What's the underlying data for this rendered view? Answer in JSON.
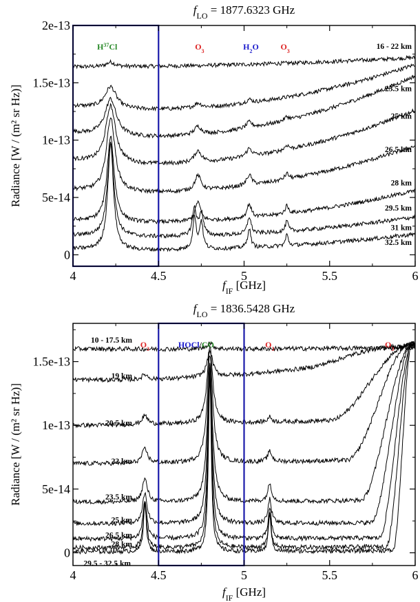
{
  "chart_data": [
    {
      "type": "line",
      "title_prefix": "f",
      "title_sub": "LO",
      "title_value": " = 1877.6323 GHz",
      "xlabel_prefix": "f",
      "xlabel_sub": "IF",
      "xlabel_unit": " [GHz]",
      "ylabel": "Radiance [W / (m² sr Hz)]",
      "xlim": [
        4,
        6
      ],
      "ylim": [
        -1e-14,
        2e-13
      ],
      "x_ticks": [
        4,
        4.5,
        5,
        5.5,
        6
      ],
      "x_tick_labels": [
        "4",
        "4.5",
        "5",
        "5.5",
        "6"
      ],
      "y_ticks": [
        0,
        5e-14,
        1e-13,
        1.5e-13,
        2e-13
      ],
      "y_tick_labels": [
        "0",
        "5e-14",
        "1e-13",
        "1.5e-13",
        "2e-13"
      ],
      "highlight_band": [
        4,
        4.5
      ],
      "band_color": "#1a1aaa",
      "species_labels": [
        {
          "base": "H",
          "sup": "37",
          "rest": "Cl",
          "x": 4.2,
          "color": "#2a8a2a"
        },
        {
          "base": "O",
          "sub": "3",
          "x": 4.74,
          "color": "#dd2222"
        },
        {
          "base": "H",
          "sub": "2",
          "rest": "O",
          "x": 5.04,
          "color": "#1a1acc"
        },
        {
          "base": "O",
          "sub": "3",
          "x": 5.24,
          "color": "#dd2222"
        }
      ],
      "series": [
        {
          "name": "16 - 22 km",
          "baseline": [
            1.64e-13,
            1.66e-13,
            1.72e-13
          ],
          "lines": [
            {
              "center": 4.22,
              "width": 0.03,
              "height": 4e-15
            }
          ]
        },
        {
          "name": "23.5 km",
          "baseline": [
            1.3e-13,
            1.32e-13,
            1.66e-13
          ],
          "lines": [
            {
              "center": 4.22,
              "width": 0.04,
              "height": 1.9e-14
            },
            {
              "center": 4.73,
              "width": 0.025,
              "height": 4e-15
            },
            {
              "center": 5.03,
              "width": 0.02,
              "height": 3e-15
            }
          ]
        },
        {
          "name": "25 km",
          "baseline": [
            1.07e-13,
            1.1e-13,
            1.56e-13
          ],
          "lines": [
            {
              "center": 4.22,
              "width": 0.04,
              "height": 3.2e-14
            },
            {
              "center": 4.73,
              "width": 0.025,
              "height": 7e-15
            },
            {
              "center": 5.03,
              "width": 0.02,
              "height": 5e-15
            },
            {
              "center": 5.25,
              "width": 0.015,
              "height": 3e-15
            }
          ]
        },
        {
          "name": "26.5 km",
          "baseline": [
            8.3e-14,
            8.5e-14,
            1.26e-13
          ],
          "lines": [
            {
              "center": 4.22,
              "width": 0.035,
              "height": 5e-14
            },
            {
              "center": 4.73,
              "width": 0.025,
              "height": 1e-14
            },
            {
              "center": 5.03,
              "width": 0.02,
              "height": 7e-15
            },
            {
              "center": 5.25,
              "width": 0.015,
              "height": 4e-15
            }
          ]
        },
        {
          "name": "28 km",
          "baseline": [
            5.7e-14,
            6e-14,
            9.5e-14
          ],
          "lines": [
            {
              "center": 4.22,
              "width": 0.03,
              "height": 6.5e-14
            },
            {
              "center": 4.73,
              "width": 0.022,
              "height": 1.3e-14
            },
            {
              "center": 5.03,
              "width": 0.018,
              "height": 9e-15
            },
            {
              "center": 5.25,
              "width": 0.015,
              "height": 5e-15
            }
          ]
        },
        {
          "name": "29.5 km",
          "baseline": [
            3e-14,
            3.2e-14,
            5.6e-14
          ],
          "lines": [
            {
              "center": 4.22,
              "width": 0.025,
              "height": 7.5e-14
            },
            {
              "center": 4.73,
              "width": 0.018,
              "height": 1.7e-14
            },
            {
              "center": 5.03,
              "width": 0.015,
              "height": 1.2e-14
            },
            {
              "center": 5.25,
              "width": 0.012,
              "height": 7e-15
            }
          ]
        },
        {
          "name": "31 km",
          "baseline": [
            1.7e-14,
            1.8e-14,
            3.3e-14
          ],
          "lines": [
            {
              "center": 4.22,
              "width": 0.022,
              "height": 8.3e-14
            },
            {
              "center": 4.71,
              "width": 0.014,
              "height": 2.4e-14
            },
            {
              "center": 4.75,
              "width": 0.014,
              "height": 2e-14
            },
            {
              "center": 5.03,
              "width": 0.013,
              "height": 1.5e-14
            },
            {
              "center": 5.25,
              "width": 0.01,
              "height": 9e-15
            }
          ]
        },
        {
          "name": "32.5 km",
          "baseline": [
            5e-15,
            6e-15,
            1.8e-14
          ],
          "lines": [
            {
              "center": 4.22,
              "width": 0.02,
              "height": 9.3e-14
            },
            {
              "center": 4.71,
              "width": 0.012,
              "height": 2.8e-14
            },
            {
              "center": 4.75,
              "width": 0.012,
              "height": 2.4e-14
            },
            {
              "center": 5.03,
              "width": 0.011,
              "height": 1.7e-14
            },
            {
              "center": 5.25,
              "width": 0.009,
              "height": 1e-14
            }
          ]
        }
      ]
    },
    {
      "type": "line",
      "title_prefix": "f",
      "title_sub": "LO",
      "title_value": " = 1836.5428 GHz",
      "xlabel_prefix": "f",
      "xlabel_sub": "IF",
      "xlabel_unit": " [GHz]",
      "ylabel": "Radiance [W / (m² sr Hz)]",
      "xlim": [
        4,
        6
      ],
      "ylim": [
        -1e-14,
        1.8e-13
      ],
      "x_ticks": [
        4,
        4.5,
        5,
        5.5,
        6
      ],
      "x_tick_labels": [
        "4",
        "4.5",
        "5",
        "5.5",
        "6"
      ],
      "y_ticks": [
        0,
        5e-14,
        1e-13,
        1.5e-13
      ],
      "y_tick_labels": [
        "0",
        "5e-14",
        "1e-13",
        "1.5e-13"
      ],
      "highlight_band": [
        4.5,
        5
      ],
      "band_color": "#1a1aaa",
      "species_labels": [
        {
          "base": "O",
          "sub": "3",
          "x": 4.42,
          "color": "#dd2222"
        },
        {
          "base": "HOCl",
          "color": "#1a1acc",
          "x": 4.72,
          "slash": "/",
          "second": "CO",
          "second_color": "#2a8a2a"
        },
        {
          "base": "O",
          "sub": "3",
          "x": 5.15,
          "color": "#dd2222"
        },
        {
          "base": "O",
          "sub": "3",
          "x": 5.85,
          "color": "#dd2222"
        }
      ],
      "series": [
        {
          "name": "10 - 17.5 km",
          "baseline": [
            1.6e-13,
            1.6e-13,
            1.61e-13
          ],
          "lines": [
            {
              "center": 4.8,
              "width": 0.02,
              "height": 5e-15
            }
          ]
        },
        {
          "name": "19 km",
          "baseline": [
            1.36e-13,
            1.4e-13,
            1.58e-13
          ],
          "lines": [
            {
              "center": 4.42,
              "width": 0.02,
              "height": 4e-15
            },
            {
              "center": 4.8,
              "width": 0.02,
              "height": 2e-14
            }
          ],
          "rise": {
            "start": 5.35,
            "end": 5.95,
            "to": 1.62e-13
          }
        },
        {
          "name": "20.5 km",
          "baseline": [
            1e-13,
            1.02e-13,
            1.06e-13
          ],
          "lines": [
            {
              "center": 4.42,
              "width": 0.02,
              "height": 7e-15
            },
            {
              "center": 4.8,
              "width": 0.02,
              "height": 6e-14
            },
            {
              "center": 5.15,
              "width": 0.015,
              "height": 4e-15
            }
          ],
          "rise": {
            "start": 5.5,
            "end": 5.97,
            "to": 1.63e-13
          }
        },
        {
          "name": "22 km",
          "baseline": [
            7e-14,
            7.1e-14,
            7.4e-14
          ],
          "lines": [
            {
              "center": 4.42,
              "width": 0.02,
              "height": 1.1e-14
            },
            {
              "center": 4.8,
              "width": 0.02,
              "height": 8.5e-14
            },
            {
              "center": 5.15,
              "width": 0.015,
              "height": 8e-15
            }
          ],
          "rise": {
            "start": 5.6,
            "end": 5.97,
            "to": 1.64e-13
          }
        },
        {
          "name": "23.5 km",
          "baseline": [
            4e-14,
            4e-14,
            4.2e-14
          ],
          "lines": [
            {
              "center": 4.42,
              "width": 0.018,
              "height": 1.8e-14
            },
            {
              "center": 4.8,
              "width": 0.018,
              "height": 1.1e-13
            },
            {
              "center": 5.15,
              "width": 0.014,
              "height": 1.4e-14
            }
          ],
          "rise": {
            "start": 5.68,
            "end": 5.98,
            "to": 1.64e-13
          }
        },
        {
          "name": "25 km",
          "baseline": [
            2.3e-14,
            2.3e-14,
            2.4e-14
          ],
          "lines": [
            {
              "center": 4.42,
              "width": 0.016,
              "height": 2.4e-14
            },
            {
              "center": 4.8,
              "width": 0.016,
              "height": 1.23e-13
            },
            {
              "center": 5.15,
              "width": 0.012,
              "height": 1.9e-14
            }
          ],
          "rise": {
            "start": 5.74,
            "end": 5.98,
            "to": 1.64e-13
          }
        },
        {
          "name": "26.5 km",
          "baseline": [
            1.1e-14,
            1.1e-14,
            1.2e-14
          ],
          "lines": [
            {
              "center": 4.42,
              "width": 0.014,
              "height": 3e-14
            },
            {
              "center": 4.8,
              "width": 0.014,
              "height": 1.3e-13
            },
            {
              "center": 5.15,
              "width": 0.011,
              "height": 2.4e-14
            }
          ],
          "rise": {
            "start": 5.79,
            "end": 5.98,
            "to": 1.64e-13
          }
        },
        {
          "name": "28 km",
          "baseline": [
            4e-15,
            4e-15,
            5e-15
          ],
          "lines": [
            {
              "center": 4.42,
              "width": 0.012,
              "height": 3.5e-14
            },
            {
              "center": 4.8,
              "width": 0.012,
              "height": 1.36e-13
            },
            {
              "center": 5.15,
              "width": 0.01,
              "height": 2.8e-14
            }
          ],
          "rise": {
            "start": 5.83,
            "end": 5.98,
            "to": 1.64e-13
          }
        },
        {
          "name": "29.5 - 32.5 km",
          "baseline": [
            1e-15,
            1e-15,
            2e-15
          ],
          "lines": [
            {
              "center": 4.42,
              "width": 0.01,
              "height": 3.9e-14
            },
            {
              "center": 4.8,
              "width": 0.01,
              "height": 1.4e-13
            },
            {
              "center": 5.15,
              "width": 0.009,
              "height": 3.1e-14
            }
          ],
          "rise": {
            "start": 5.87,
            "end": 5.98,
            "to": 1.64e-13
          }
        }
      ]
    }
  ]
}
